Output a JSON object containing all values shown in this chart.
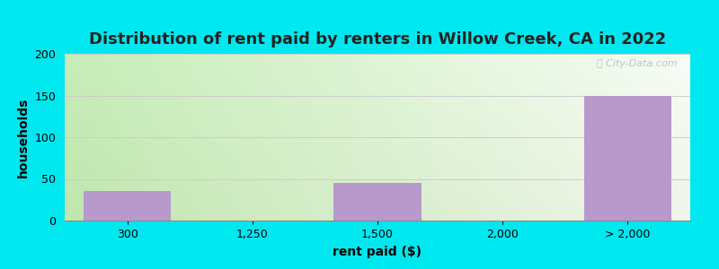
{
  "title": "Distribution of rent paid by renters in Willow Creek, CA in 2022",
  "xlabel": "rent paid ($)",
  "ylabel": "households",
  "bar_categories": [
    "300",
    "1,250",
    "1,500",
    "2,000",
    "> 2,000"
  ],
  "bar_values": [
    35,
    0,
    45,
    0,
    150
  ],
  "bar_color": "#b899cc",
  "bar_positions": [
    0,
    1,
    2,
    3,
    4
  ],
  "ylim": [
    0,
    200
  ],
  "yticks": [
    0,
    50,
    100,
    150,
    200
  ],
  "title_fontsize": 13,
  "axis_label_fontsize": 10,
  "tick_fontsize": 9,
  "outer_background": "#00e8ef",
  "bar_width": 0.7,
  "grid_color": "#cccccc",
  "watermark_color": "#b0c8d0",
  "title_color": "#222222"
}
